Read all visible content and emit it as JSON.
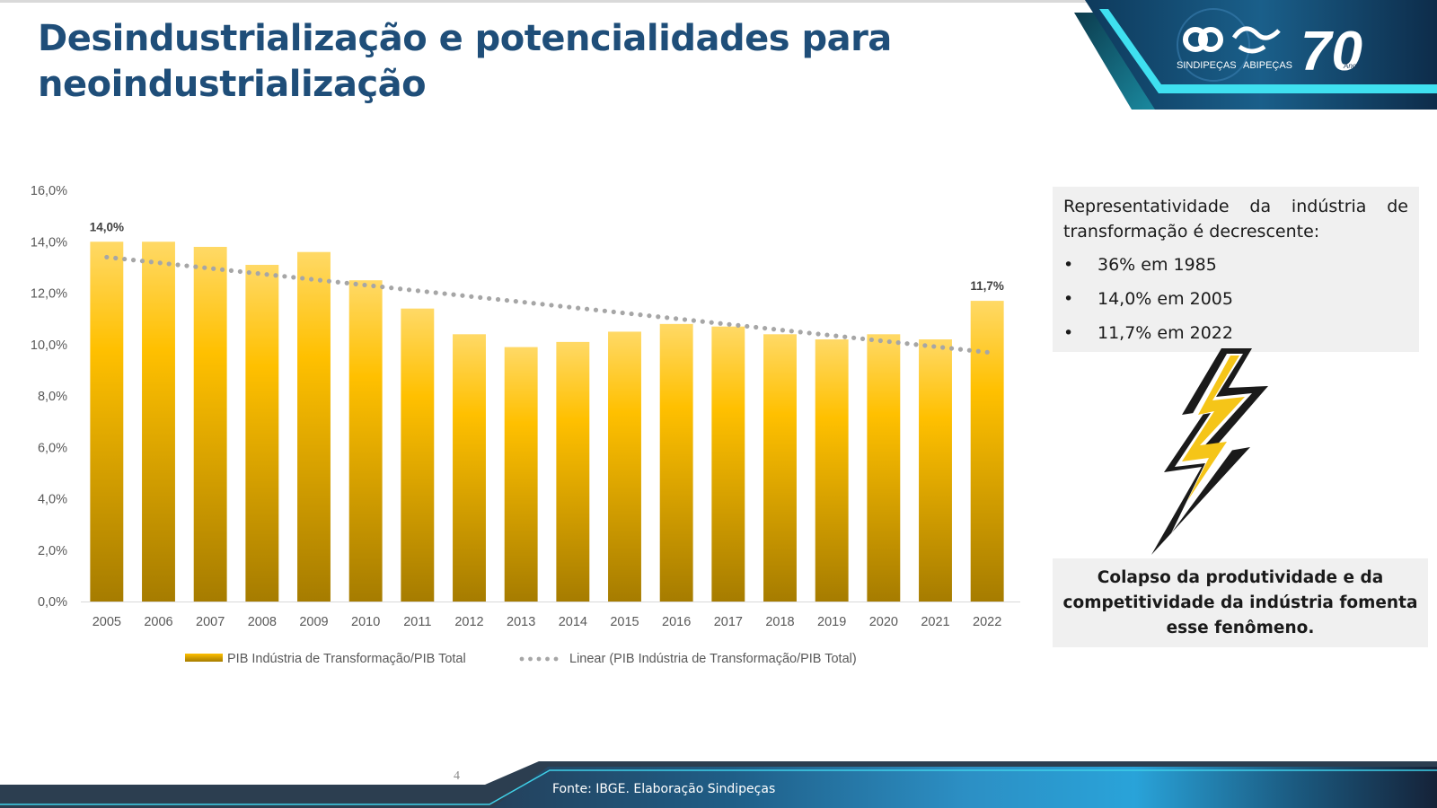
{
  "slide": {
    "title": "Desindustrialização e potencialidades para neoindustrialização",
    "page_number": "4",
    "source": "Fonte: IBGE. Elaboração Sindipeças"
  },
  "logo": {
    "org1": "SINDIPEÇAS",
    "org2": "ABIPEÇAS",
    "anniversary": "70",
    "anniversary_word": "Anos"
  },
  "info_box": {
    "heading": "Representatividade da indústria de transformação é decrescente:",
    "bullet_char": "•",
    "items": [
      "36%  em 1985",
      "14,0% em 2005",
      "11,7% em 2022"
    ]
  },
  "conclusion": {
    "text": "Colapso da  produtividade e da competitividade da indústria fomenta esse fenômeno."
  },
  "icons": {
    "bolt": "lightning-bolt-icon"
  },
  "colors": {
    "title": "#1f4e79",
    "bar_top": "#ffd966",
    "bar_mid": "#ffc000",
    "bar_bottom": "#a67c00",
    "trend": "#a6a6a6",
    "axis_text": "#595959",
    "footer_dark": "#2c3e50",
    "footer_blue": "#29a3d9",
    "footer_line": "#3fd0e8"
  },
  "chart_data": {
    "type": "bar",
    "title": "",
    "xlabel": "",
    "ylabel": "",
    "categories": [
      "2005",
      "2006",
      "2007",
      "2008",
      "2009",
      "2010",
      "2011",
      "2012",
      "2013",
      "2014",
      "2015",
      "2016",
      "2017",
      "2018",
      "2019",
      "2020",
      "2021",
      "2022"
    ],
    "series": [
      {
        "name": "PIB Indústria de Transformação/PIB Total",
        "values": [
          14.0,
          14.0,
          13.8,
          13.1,
          13.6,
          12.5,
          11.4,
          10.4,
          9.9,
          10.1,
          10.5,
          10.8,
          10.7,
          10.4,
          10.2,
          10.4,
          10.2,
          11.7
        ]
      },
      {
        "name": "Linear (PIB Indústria de Transformação/PIB Total)",
        "type": "trendline",
        "start": 13.4,
        "end": 9.7
      }
    ],
    "data_labels": [
      {
        "category": "2005",
        "text": "14,0%"
      },
      {
        "category": "2022",
        "text": "11,7%"
      }
    ],
    "ylim": [
      0,
      16
    ],
    "yticks": [
      0,
      2,
      4,
      6,
      8,
      10,
      12,
      14,
      16
    ],
    "ytick_labels": [
      "0,0%",
      "2,0%",
      "4,0%",
      "6,0%",
      "8,0%",
      "10,0%",
      "12,0%",
      "14,0%",
      "16,0%"
    ],
    "grid": false,
    "legend": "bottom"
  }
}
